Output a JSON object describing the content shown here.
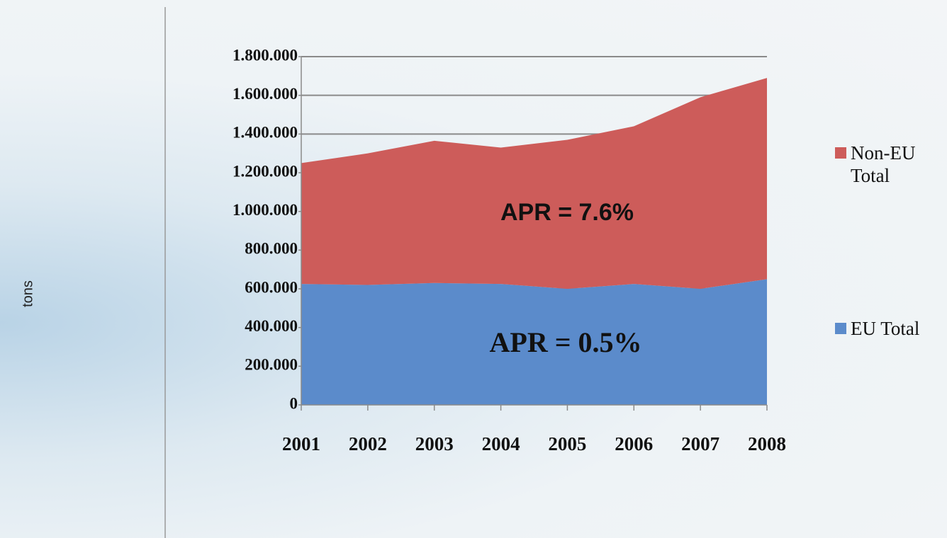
{
  "chart_data": {
    "type": "area",
    "stacked": true,
    "y_label": "tons",
    "categories": [
      "2001",
      "2002",
      "2003",
      "2004",
      "2005",
      "2006",
      "2007",
      "2008"
    ],
    "series": [
      {
        "name": "EU Total",
        "color": "#5b8bcb",
        "values": [
          625000,
          620000,
          630000,
          625000,
          600000,
          625000,
          600000,
          650000
        ]
      },
      {
        "name": "Non-EU Total",
        "color": "#cd5c5a",
        "values": [
          625000,
          680000,
          735000,
          705000,
          770000,
          815000,
          990000,
          1040000
        ]
      }
    ],
    "ylim": [
      0,
      1800000
    ],
    "yticks": [
      0,
      {
        "value": 200000,
        "label": "200.000"
      },
      {
        "value": 400000,
        "label": "400.000"
      },
      {
        "value": 600000,
        "label": "600.000"
      },
      {
        "value": 800000,
        "label": "800.000"
      },
      {
        "value": 1000000,
        "label": "1.000.000"
      },
      {
        "value": 1200000,
        "label": "1.200.000"
      },
      {
        "value": 1400000,
        "label": "1.400.000"
      },
      {
        "value": 1600000,
        "label": "1.600.000"
      },
      {
        "value": 1800000,
        "label": "1.800.000"
      }
    ],
    "grid": true,
    "annotations": [
      "APR = 7.6%",
      "APR = 0.5%"
    ]
  }
}
